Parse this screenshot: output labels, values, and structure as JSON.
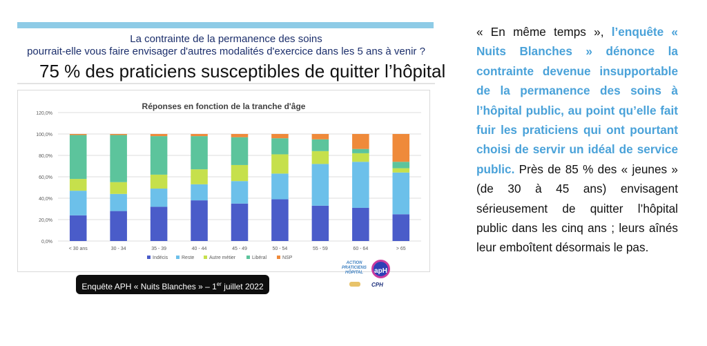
{
  "slide": {
    "subtitle_line1": "La contrainte de la permanence des soins",
    "subtitle_line2": "pourrait-elle vous faire envisager d'autres modalités d'exercice dans les 5 ans à venir ?",
    "headline": "75 % des praticiens susceptibles de quitter l’hôpital",
    "footer_prefix": "Enquête APH « Nuits Blanches » – 1",
    "footer_sup": "er",
    "footer_suffix": " juillet 2022",
    "logo_line1": "ACTION",
    "logo_line2": "PRATICIENS",
    "logo_line3": "HÔPITAL",
    "logo_circle": "apH",
    "logo_cph": "CPH"
  },
  "text": {
    "intro": "« En même temps », ",
    "highlight": "l’enquête « Nuits Blanches » dénonce la contrainte devenue insupportable de la permanence des soins à l’hôpital public, au point qu’elle fait fuir les praticiens qui ont pourtant choisi de servir un idéal de service public.",
    "rest": " Près de 85 % des « jeunes » (de 30 à 45 ans) envisagent sérieusement de quitter l’hôpital public dans les cinq ans ; leurs aînés leur emboîtent désormais le pas."
  },
  "colors": {
    "Indécis": "#4a5cc9",
    "Reste": "#6cc0ea",
    "Autre métier": "#c6e04c",
    "Libéral": "#5cc49c",
    "NSP": "#ef8a3a"
  },
  "chart_data": {
    "type": "bar",
    "stacked": true,
    "title": "Réponses en fonction de la tranche d'âge",
    "categories": [
      "< 30 ans",
      "30 - 34",
      "35 - 39",
      "40 - 44",
      "45 - 49",
      "50 - 54",
      "55 - 59",
      "60 - 64",
      "> 65"
    ],
    "ylim": [
      0,
      120
    ],
    "yticks": [
      "0,0%",
      "20,0%",
      "40,0%",
      "60,0%",
      "80,0%",
      "100,0%",
      "120,0%"
    ],
    "legend_position": "bottom",
    "series": [
      {
        "name": "Indécis",
        "values": [
          24,
          28,
          32,
          38,
          35,
          39,
          33,
          31,
          25
        ]
      },
      {
        "name": "Reste",
        "values": [
          23,
          16,
          17,
          15,
          21,
          24,
          39,
          43,
          39
        ]
      },
      {
        "name": "Autre métier",
        "values": [
          11,
          11,
          13,
          14,
          15,
          18,
          12,
          8,
          4
        ]
      },
      {
        "name": "Libéral",
        "values": [
          41,
          44,
          36,
          31,
          26,
          15,
          11,
          4,
          6
        ]
      },
      {
        "name": "NSP",
        "values": [
          1,
          1,
          2,
          2,
          3,
          4,
          5,
          14,
          26
        ]
      }
    ]
  }
}
